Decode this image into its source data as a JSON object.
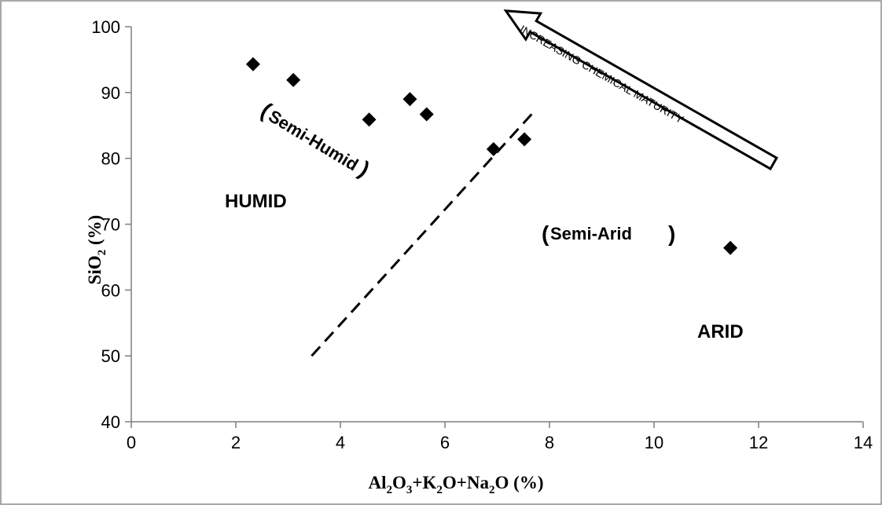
{
  "chart_data": {
    "type": "scatter",
    "title": "",
    "xlabel": {
      "parts": [
        "Al",
        "2",
        "O",
        "3",
        "+K",
        "2",
        "O+Na",
        "2",
        "O (%)"
      ]
    },
    "ylabel": {
      "parts": [
        "SiO",
        "2",
        " (%)"
      ]
    },
    "xlim": [
      0,
      14
    ],
    "ylim": [
      40,
      100
    ],
    "xticks": [
      "0",
      "2",
      "4",
      "6",
      "8",
      "10",
      "12",
      "14"
    ],
    "yticks": [
      "40",
      "50",
      "60",
      "70",
      "80",
      "90",
      "100"
    ],
    "grid": false,
    "legend": "none",
    "marker": "diamond",
    "marker_color": "#000000",
    "points": [
      {
        "x": 2.33,
        "y": 94.3
      },
      {
        "x": 3.1,
        "y": 91.9
      },
      {
        "x": 4.55,
        "y": 85.9
      },
      {
        "x": 5.33,
        "y": 89.0
      },
      {
        "x": 5.65,
        "y": 86.7
      },
      {
        "x": 6.93,
        "y": 81.4
      },
      {
        "x": 7.52,
        "y": 82.9
      },
      {
        "x": 11.46,
        "y": 66.4
      }
    ],
    "boundary_line": {
      "style": "dashed",
      "from": {
        "x": 3.45,
        "y": 50
      },
      "to": {
        "x": 7.75,
        "y": 87.5
      }
    },
    "annotations": {
      "humid": "HUMID",
      "semi_humid": "Semi-Humid",
      "semi_arid": "Semi-Arid",
      "arid": "ARID",
      "arrow": "INCREASING CHEMICAL MATURITY"
    }
  }
}
